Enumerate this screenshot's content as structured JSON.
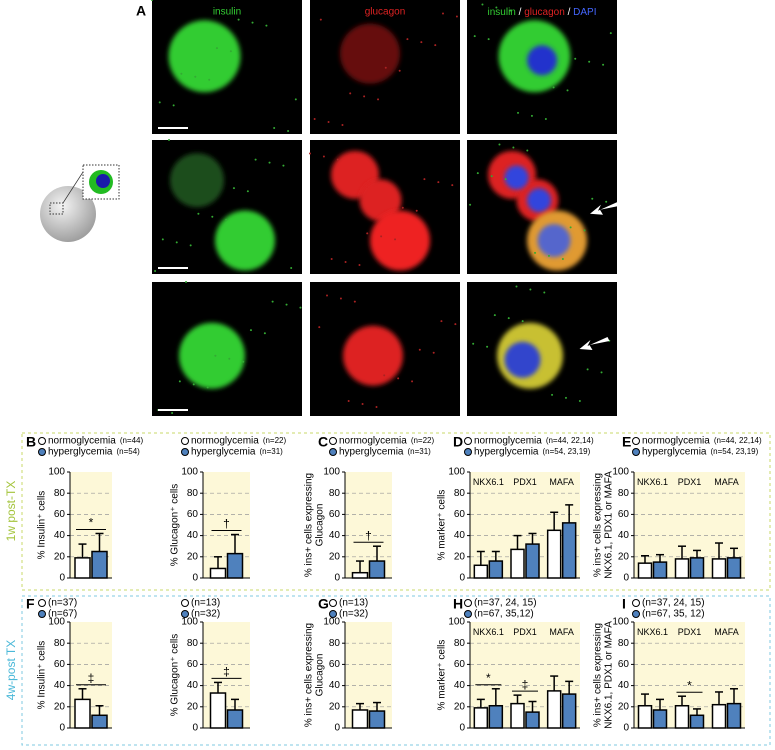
{
  "panel_a": {
    "letter": "A",
    "columns": [
      "insulin",
      "glucagon",
      [
        "insulin",
        " / ",
        "glucagon",
        " / ",
        "DAPI"
      ]
    ]
  },
  "row_labels": [
    "1w post-TX",
    "4w-post TX"
  ],
  "chart_data": [
    {
      "type": "bar",
      "panel": "B",
      "ylabel": "% Insulin⁺ cells",
      "ylim": [
        0,
        100
      ],
      "yticks": [
        0,
        20,
        40,
        60,
        80,
        100
      ],
      "grid": true,
      "series": [
        {
          "name": "normoglycemia",
          "n": "(n=44)",
          "color": "#ffffff",
          "values": [
            19
          ],
          "errors": [
            13
          ]
        },
        {
          "name": "hyperglycemia",
          "n": "(n=54)",
          "color": "#4f81bd",
          "values": [
            25
          ],
          "errors": [
            17
          ]
        }
      ],
      "annotations": [
        "*"
      ]
    },
    {
      "type": "bar",
      "ylabel": "% Glucagon⁺ cells",
      "ylim": [
        0,
        100
      ],
      "yticks": [
        0,
        20,
        40,
        60,
        80,
        100
      ],
      "grid": true,
      "series": [
        {
          "name": "normoglycemia",
          "n": "(n=22)",
          "color": "#ffffff",
          "values": [
            9
          ],
          "errors": [
            11
          ]
        },
        {
          "name": "hyperglycemia",
          "n": "(n=31)",
          "color": "#4f81bd",
          "values": [
            23
          ],
          "errors": [
            18
          ]
        }
      ],
      "annotations": [
        "†"
      ]
    },
    {
      "type": "bar",
      "panel": "C",
      "ylabel_lines": [
        "% ins+ cells expressing",
        "Glucagon"
      ],
      "ylim": [
        0,
        100
      ],
      "yticks": [
        0,
        20,
        40,
        60,
        80,
        100
      ],
      "grid": true,
      "series": [
        {
          "name": "normoglycemia",
          "n": "(n=22)",
          "color": "#ffffff",
          "values": [
            5
          ],
          "errors": [
            11
          ]
        },
        {
          "name": "hyperglycemia",
          "n": "(n=31)",
          "color": "#4f81bd",
          "values": [
            16
          ],
          "errors": [
            14
          ]
        }
      ],
      "annotations": [
        "†"
      ]
    },
    {
      "type": "bar",
      "panel": "D",
      "ylabel": "% marker⁺ cells",
      "categories": [
        "NKX6.1",
        "PDX1",
        "MAFA"
      ],
      "ylim": [
        0,
        100
      ],
      "yticks": [
        0,
        20,
        40,
        60,
        80,
        100
      ],
      "grid": true,
      "series": [
        {
          "name": "normoglycemia",
          "n": "(n=44, 22,14)",
          "color": "#ffffff",
          "values": [
            12,
            27,
            45
          ],
          "errors": [
            13,
            13,
            17
          ]
        },
        {
          "name": "hyperglycemia",
          "n": "(n=54, 23,19)",
          "color": "#4f81bd",
          "values": [
            16,
            32,
            52
          ],
          "errors": [
            9,
            10,
            17
          ]
        }
      ]
    },
    {
      "type": "bar",
      "panel": "E",
      "ylabel_lines": [
        "% ins+ cells expressing",
        "NKX6.1, PDX1 or MAFA"
      ],
      "categories": [
        "NKX6.1",
        "PDX1",
        "MAFA"
      ],
      "ylim": [
        0,
        100
      ],
      "yticks": [
        0,
        20,
        40,
        60,
        80,
        100
      ],
      "grid": true,
      "series": [
        {
          "name": "normoglycemia",
          "n": "(n=44, 22,14)",
          "color": "#ffffff",
          "values": [
            14,
            18,
            18
          ],
          "errors": [
            7,
            12,
            15
          ]
        },
        {
          "name": "hyperglycemia",
          "n": "(n=54, 23,19)",
          "color": "#4f81bd",
          "values": [
            15,
            19,
            19
          ],
          "errors": [
            7,
            7,
            9
          ]
        }
      ]
    },
    {
      "type": "bar",
      "panel": "F",
      "ylabel": "% Insulin⁺ cells",
      "ylim": [
        0,
        100
      ],
      "yticks": [
        0,
        20,
        40,
        60,
        80,
        100
      ],
      "grid": true,
      "series": [
        {
          "name": "(n=37)",
          "color": "#ffffff",
          "values": [
            27
          ],
          "errors": [
            10
          ]
        },
        {
          "name": "(n=67)",
          "color": "#4f81bd",
          "values": [
            12
          ],
          "errors": [
            9
          ]
        }
      ],
      "annotations": [
        "‡"
      ]
    },
    {
      "type": "bar",
      "ylabel": "% Glucagon⁺ cells",
      "ylim": [
        0,
        100
      ],
      "yticks": [
        0,
        20,
        40,
        60,
        80,
        100
      ],
      "grid": true,
      "series": [
        {
          "name": "(n=13)",
          "color": "#ffffff",
          "values": [
            33
          ],
          "errors": [
            10
          ]
        },
        {
          "name": "(n=32)",
          "color": "#4f81bd",
          "values": [
            17
          ],
          "errors": [
            10
          ]
        }
      ],
      "annotations": [
        "‡"
      ]
    },
    {
      "type": "bar",
      "panel": "G",
      "ylabel_lines": [
        "% ins+ cells expressing",
        "Glucagon"
      ],
      "ylim": [
        0,
        100
      ],
      "yticks": [
        0,
        20,
        40,
        60,
        80,
        100
      ],
      "grid": true,
      "series": [
        {
          "name": "(n=13)",
          "color": "#ffffff",
          "values": [
            17
          ],
          "errors": [
            6
          ]
        },
        {
          "name": "(n=32)",
          "color": "#4f81bd",
          "values": [
            16
          ],
          "errors": [
            8
          ]
        }
      ]
    },
    {
      "type": "bar",
      "panel": "H",
      "ylabel": "% marker⁺ cells",
      "categories": [
        "NKX6.1",
        "PDX1",
        "MAFA"
      ],
      "ylim": [
        0,
        100
      ],
      "yticks": [
        0,
        20,
        40,
        60,
        80,
        100
      ],
      "grid": true,
      "series": [
        {
          "name": "(n=37, 24, 15)",
          "color": "#ffffff",
          "values": [
            19,
            23,
            35
          ],
          "errors": [
            8,
            8,
            14
          ]
        },
        {
          "name": "(n=67, 35,12)",
          "color": "#4f81bd",
          "values": [
            21,
            15,
            32
          ],
          "errors": [
            16,
            10,
            12
          ]
        }
      ],
      "annotations": [
        "*",
        "‡",
        null
      ]
    },
    {
      "type": "bar",
      "panel": "I",
      "ylabel_lines": [
        "% ins+ cells expressing",
        "NKX6.1, PDX1 or MAFA"
      ],
      "categories": [
        "NKX6.1",
        "PDX1",
        "MAFA"
      ],
      "ylim": [
        0,
        100
      ],
      "yticks": [
        0,
        20,
        40,
        60,
        80,
        100
      ],
      "grid": true,
      "series": [
        {
          "name": "(n=37, 24, 15)",
          "color": "#ffffff",
          "values": [
            21,
            21,
            22
          ],
          "errors": [
            11,
            9,
            12
          ]
        },
        {
          "name": "(n=67, 35, 12)",
          "color": "#4f81bd",
          "values": [
            17,
            12,
            23
          ],
          "errors": [
            10,
            6,
            14
          ]
        }
      ],
      "annotations": [
        null,
        "*",
        null
      ]
    }
  ]
}
